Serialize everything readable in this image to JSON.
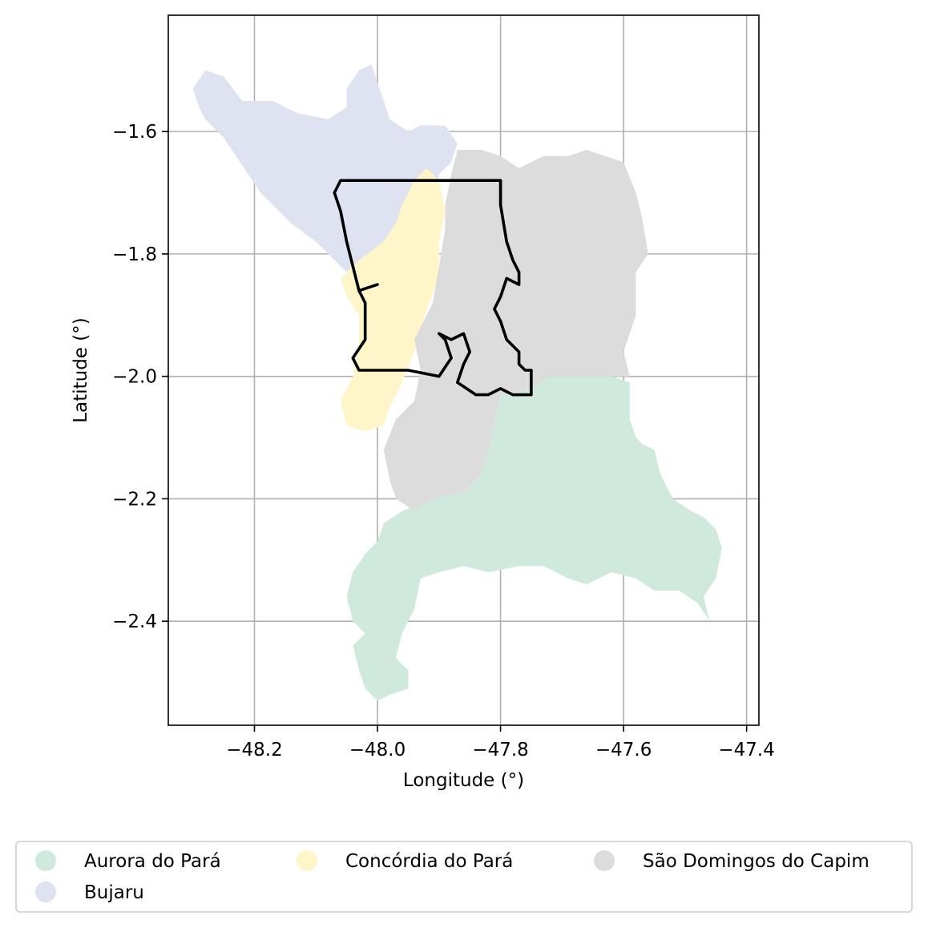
{
  "chart_data": {
    "type": "map",
    "xlabel": "Longitude (°)",
    "ylabel": "Latitude (°)",
    "xlim": [
      -48.34,
      -47.38
    ],
    "ylim": [
      -2.57,
      -1.41
    ],
    "xticks": [
      -48.2,
      -48.0,
      -47.8,
      -47.6,
      -47.4
    ],
    "xtick_labels": [
      "−48.2",
      "−48.0",
      "−47.8",
      "−47.6",
      "−47.4"
    ],
    "yticks": [
      -1.6,
      -1.8,
      -2.0,
      -2.2,
      -2.4
    ],
    "ytick_labels": [
      "−1.6",
      "−1.8",
      "−2.0",
      "−2.2",
      "−2.4"
    ],
    "grid": true,
    "legend_position": "bottom",
    "regions": [
      {
        "name": "Aurora do Pará",
        "color": "#cfeadd",
        "polygon": [
          [
            -47.8,
            -2.03
          ],
          [
            -47.75,
            -2.02
          ],
          [
            -47.72,
            -2.0
          ],
          [
            -47.62,
            -2.0
          ],
          [
            -47.59,
            -2.01
          ],
          [
            -47.59,
            -2.07
          ],
          [
            -47.58,
            -2.1
          ],
          [
            -47.57,
            -2.11
          ],
          [
            -47.55,
            -2.12
          ],
          [
            -47.54,
            -2.16
          ],
          [
            -47.52,
            -2.2
          ],
          [
            -47.49,
            -2.22
          ],
          [
            -47.47,
            -2.23
          ],
          [
            -47.45,
            -2.25
          ],
          [
            -47.44,
            -2.28
          ],
          [
            -47.45,
            -2.33
          ],
          [
            -47.47,
            -2.36
          ],
          [
            -47.46,
            -2.4
          ],
          [
            -47.48,
            -2.37
          ],
          [
            -47.51,
            -2.35
          ],
          [
            -47.55,
            -2.35
          ],
          [
            -47.58,
            -2.33
          ],
          [
            -47.62,
            -2.32
          ],
          [
            -47.66,
            -2.34
          ],
          [
            -47.69,
            -2.33
          ],
          [
            -47.73,
            -2.31
          ],
          [
            -47.77,
            -2.31
          ],
          [
            -47.82,
            -2.32
          ],
          [
            -47.86,
            -2.31
          ],
          [
            -47.9,
            -2.32
          ],
          [
            -47.93,
            -2.33
          ],
          [
            -47.94,
            -2.38
          ],
          [
            -47.96,
            -2.42
          ],
          [
            -47.97,
            -2.46
          ],
          [
            -47.95,
            -2.48
          ],
          [
            -47.95,
            -2.51
          ],
          [
            -47.98,
            -2.52
          ],
          [
            -48.0,
            -2.53
          ],
          [
            -48.02,
            -2.51
          ],
          [
            -48.03,
            -2.48
          ],
          [
            -48.04,
            -2.44
          ],
          [
            -48.02,
            -2.42
          ],
          [
            -48.04,
            -2.4
          ],
          [
            -48.05,
            -2.36
          ],
          [
            -48.04,
            -2.32
          ],
          [
            -48.02,
            -2.29
          ],
          [
            -48.0,
            -2.27
          ],
          [
            -47.99,
            -2.24
          ],
          [
            -47.96,
            -2.22
          ],
          [
            -47.91,
            -2.2
          ],
          [
            -47.86,
            -2.19
          ],
          [
            -47.83,
            -2.16
          ],
          [
            -47.82,
            -2.12
          ],
          [
            -47.81,
            -2.08
          ]
        ]
      },
      {
        "name": "Bujaru",
        "color": "#dfe3f1",
        "polygon": [
          [
            -48.3,
            -1.53
          ],
          [
            -48.28,
            -1.5
          ],
          [
            -48.25,
            -1.51
          ],
          [
            -48.22,
            -1.55
          ],
          [
            -48.17,
            -1.55
          ],
          [
            -48.13,
            -1.57
          ],
          [
            -48.08,
            -1.58
          ],
          [
            -48.05,
            -1.56
          ],
          [
            -48.05,
            -1.53
          ],
          [
            -48.03,
            -1.5
          ],
          [
            -48.01,
            -1.49
          ],
          [
            -48.0,
            -1.52
          ],
          [
            -47.99,
            -1.55
          ],
          [
            -47.98,
            -1.58
          ],
          [
            -47.95,
            -1.6
          ],
          [
            -47.93,
            -1.59
          ],
          [
            -47.89,
            -1.59
          ],
          [
            -47.87,
            -1.62
          ],
          [
            -47.88,
            -1.65
          ],
          [
            -47.9,
            -1.67
          ],
          [
            -47.91,
            -1.73
          ],
          [
            -47.93,
            -1.76
          ],
          [
            -47.95,
            -1.79
          ],
          [
            -47.98,
            -1.82
          ],
          [
            -48.01,
            -1.84
          ],
          [
            -48.04,
            -1.84
          ],
          [
            -48.07,
            -1.81
          ],
          [
            -48.1,
            -1.78
          ],
          [
            -48.14,
            -1.75
          ],
          [
            -48.17,
            -1.72
          ],
          [
            -48.19,
            -1.7
          ],
          [
            -48.21,
            -1.67
          ],
          [
            -48.23,
            -1.64
          ],
          [
            -48.25,
            -1.61
          ],
          [
            -48.28,
            -1.58
          ],
          [
            -48.29,
            -1.56
          ]
        ]
      },
      {
        "name": "Concórdia do Pará",
        "color": "#fef5c8",
        "polygon": [
          [
            -47.92,
            -1.66
          ],
          [
            -47.9,
            -1.68
          ],
          [
            -47.89,
            -1.73
          ],
          [
            -47.9,
            -1.78
          ],
          [
            -47.9,
            -1.84
          ],
          [
            -47.92,
            -1.89
          ],
          [
            -47.94,
            -1.96
          ],
          [
            -47.96,
            -2.01
          ],
          [
            -47.98,
            -2.05
          ],
          [
            -47.99,
            -2.08
          ],
          [
            -48.02,
            -2.09
          ],
          [
            -48.05,
            -2.08
          ],
          [
            -48.06,
            -2.04
          ],
          [
            -48.04,
            -2.0
          ],
          [
            -48.03,
            -1.95
          ],
          [
            -48.03,
            -1.9
          ],
          [
            -48.05,
            -1.87
          ],
          [
            -48.06,
            -1.84
          ],
          [
            -48.03,
            -1.81
          ],
          [
            -47.99,
            -1.78
          ],
          [
            -47.97,
            -1.75
          ],
          [
            -47.96,
            -1.72
          ],
          [
            -47.94,
            -1.68
          ]
        ]
      },
      {
        "name": "São Domingos do Capim",
        "color": "#dcdcdc",
        "polygon": [
          [
            -47.87,
            -1.63
          ],
          [
            -47.83,
            -1.63
          ],
          [
            -47.8,
            -1.64
          ],
          [
            -47.77,
            -1.66
          ],
          [
            -47.73,
            -1.64
          ],
          [
            -47.69,
            -1.64
          ],
          [
            -47.66,
            -1.63
          ],
          [
            -47.63,
            -1.64
          ],
          [
            -47.6,
            -1.65
          ],
          [
            -47.58,
            -1.7
          ],
          [
            -47.57,
            -1.74
          ],
          [
            -47.56,
            -1.8
          ],
          [
            -47.58,
            -1.83
          ],
          [
            -47.58,
            -1.9
          ],
          [
            -47.6,
            -1.96
          ],
          [
            -47.59,
            -2.0
          ],
          [
            -47.62,
            -2.0
          ],
          [
            -47.72,
            -2.0
          ],
          [
            -47.75,
            -2.02
          ],
          [
            -47.8,
            -2.03
          ],
          [
            -47.81,
            -2.08
          ],
          [
            -47.82,
            -2.12
          ],
          [
            -47.83,
            -2.16
          ],
          [
            -47.86,
            -2.19
          ],
          [
            -47.91,
            -2.2
          ],
          [
            -47.94,
            -2.22
          ],
          [
            -47.97,
            -2.2
          ],
          [
            -47.98,
            -2.17
          ],
          [
            -47.99,
            -2.12
          ],
          [
            -47.97,
            -2.07
          ],
          [
            -47.94,
            -2.04
          ],
          [
            -47.93,
            -1.99
          ],
          [
            -47.94,
            -1.94
          ],
          [
            -47.91,
            -1.88
          ],
          [
            -47.9,
            -1.82
          ],
          [
            -47.89,
            -1.76
          ],
          [
            -47.89,
            -1.72
          ],
          [
            -47.88,
            -1.67
          ]
        ]
      }
    ],
    "outline": {
      "color": "#000000",
      "paths": [
        [
          [
            -48.06,
            -1.68
          ],
          [
            -47.8,
            -1.68
          ],
          [
            -47.8,
            -1.72
          ],
          [
            -47.79,
            -1.78
          ],
          [
            -47.78,
            -1.81
          ],
          [
            -47.77,
            -1.83
          ],
          [
            -47.77,
            -1.85
          ],
          [
            -47.79,
            -1.84
          ],
          [
            -47.8,
            -1.87
          ],
          [
            -47.81,
            -1.89
          ],
          [
            -47.8,
            -1.91
          ],
          [
            -47.79,
            -1.94
          ],
          [
            -47.77,
            -1.96
          ],
          [
            -47.77,
            -1.98
          ],
          [
            -47.76,
            -1.99
          ],
          [
            -47.75,
            -1.99
          ],
          [
            -47.75,
            -2.01
          ],
          [
            -47.75,
            -2.03
          ],
          [
            -47.78,
            -2.03
          ],
          [
            -47.8,
            -2.02
          ],
          [
            -47.82,
            -2.03
          ],
          [
            -47.84,
            -2.03
          ],
          [
            -47.87,
            -2.01
          ],
          [
            -47.86,
            -1.98
          ],
          [
            -47.85,
            -1.96
          ],
          [
            -47.86,
            -1.93
          ],
          [
            -47.88,
            -1.94
          ],
          [
            -47.9,
            -1.93
          ],
          [
            -47.89,
            -1.94
          ],
          [
            -47.88,
            -1.97
          ],
          [
            -47.9,
            -2.0
          ],
          [
            -47.95,
            -1.99
          ],
          [
            -47.98,
            -1.99
          ],
          [
            -48.0,
            -1.99
          ],
          [
            -48.03,
            -1.99
          ],
          [
            -48.04,
            -1.97
          ],
          [
            -48.02,
            -1.94
          ],
          [
            -48.02,
            -1.88
          ],
          [
            -48.03,
            -1.86
          ],
          [
            -48.04,
            -1.82
          ],
          [
            -48.05,
            -1.78
          ],
          [
            -48.06,
            -1.73
          ],
          [
            -48.07,
            -1.7
          ]
        ],
        [
          [
            -48.03,
            -1.86
          ],
          [
            -48.0,
            -1.85
          ]
        ]
      ]
    },
    "legend": {
      "entries": [
        "Aurora do Pará",
        "Bujaru",
        "Concórdia do Pará",
        "São Domingos do Capim"
      ],
      "columns": 3
    }
  }
}
